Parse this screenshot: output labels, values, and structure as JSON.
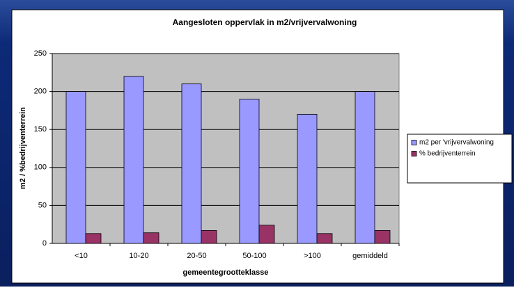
{
  "chart_data": {
    "type": "bar",
    "title": "Aangesloten oppervlak in m2/vrijvervalwoning",
    "x_label": "gemeentegrootteklasse",
    "y_label": "m2 / %bedrijventerrein",
    "categories": [
      "<10",
      "10-20",
      "20-50",
      "50-100",
      ">100",
      "gemiddeld"
    ],
    "series": [
      {
        "name": "m2 per 'vrijvervalwoning",
        "color": "#9999ff",
        "values": [
          200,
          220,
          210,
          190,
          170,
          200
        ]
      },
      {
        "name": "% bedrijventerrein",
        "color": "#993366",
        "values": [
          13,
          14,
          17,
          24,
          13,
          17
        ]
      }
    ],
    "ylim": [
      0,
      250
    ],
    "yticks": [
      0,
      50,
      100,
      150,
      200,
      250
    ],
    "grid": true,
    "legend": "right"
  }
}
